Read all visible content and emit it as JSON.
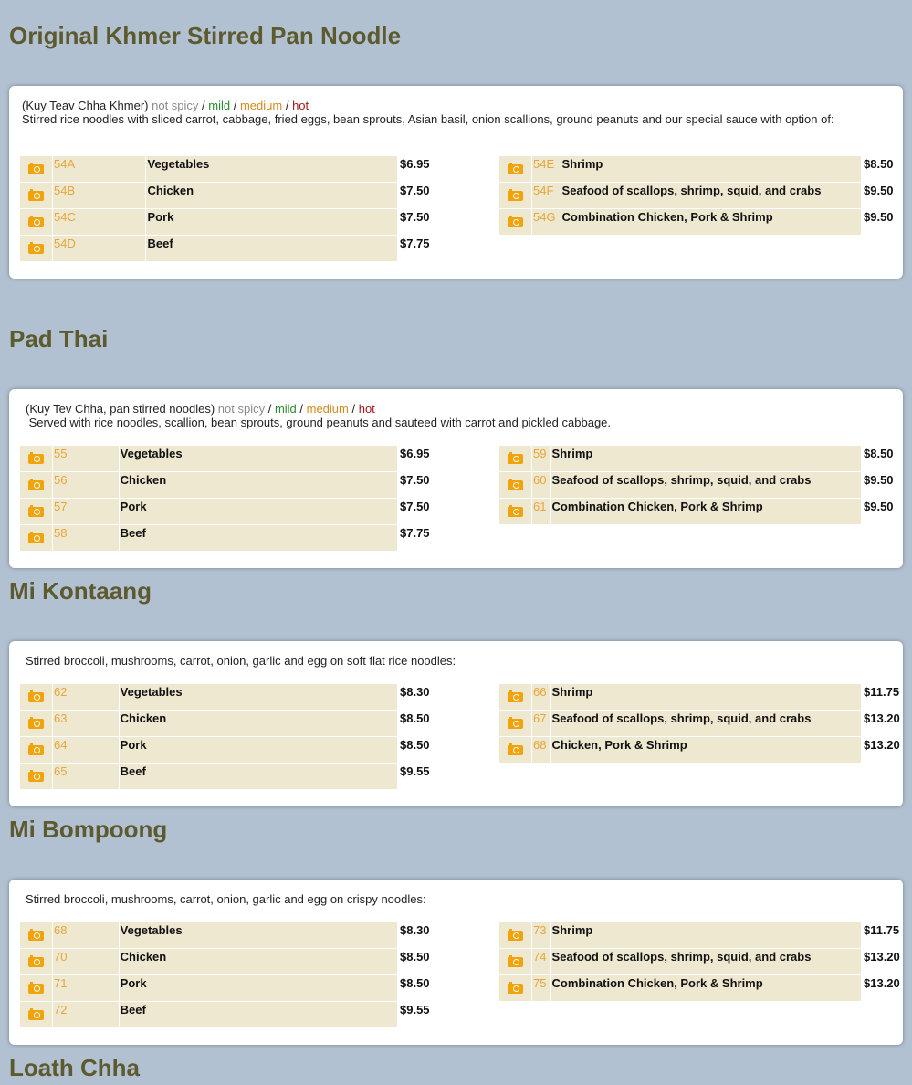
{
  "colors": {
    "background": "#b1c1d2",
    "title": "#5e5a2f",
    "row": "#eee8d0",
    "code": "#e8a63a",
    "not_spicy": "#8a8a8a",
    "mild": "#2b8a2b",
    "medium": "#d4891c",
    "hot": "#a21a1a",
    "camera_icon": "#f0a30a"
  },
  "sections": [
    {
      "title": "Original Khmer Stirred Pan Noodle",
      "subtitle": "(Kuy Teav Chha Khmer)",
      "spice": [
        "not spicy",
        "mild",
        "medium",
        "hot"
      ],
      "description": "Stirred rice noodles with sliced carrot, cabbage, fried eggs, bean sprouts, Asian basil, onion scallions, ground peanuts and our special sauce with option of:",
      "left": [
        {
          "code": "54A",
          "name": "Vegetables",
          "price": "$6.95"
        },
        {
          "code": "54B",
          "name": "Chicken",
          "price": "$7.50"
        },
        {
          "code": "54C",
          "name": "Pork",
          "price": "$7.50"
        },
        {
          "code": "54D",
          "name": "Beef",
          "price": "$7.75"
        }
      ],
      "right": [
        {
          "code": "54E",
          "name": "Shrimp",
          "price": "$8.50"
        },
        {
          "code": "54F",
          "name": "Seafood of scallops, shrimp, squid, and crabs",
          "price": "$9.50"
        },
        {
          "code": "54G",
          "name": "Combination  Chicken, Pork & Shrimp",
          "price": "$9.50"
        }
      ]
    },
    {
      "title": "Pad Thai",
      "subtitle": "(Kuy Tev Chha, pan stirred noodles)",
      "spice": [
        "not spicy",
        "mild",
        "medium",
        "hot"
      ],
      "description": " Served with rice noodles, scallion, bean sprouts, ground peanuts and sauteed with carrot and pickled cabbage.",
      "left": [
        {
          "code": "55",
          "name": "Vegetables",
          "price": "$6.95"
        },
        {
          "code": "56",
          "name": "Chicken",
          "price": "$7.50"
        },
        {
          "code": "57",
          "name": "Pork",
          "price": "$7.50"
        },
        {
          "code": "58",
          "name": "Beef",
          "price": "$7.75"
        }
      ],
      "right": [
        {
          "code": "59",
          "name": "Shrimp",
          "price": "$8.50"
        },
        {
          "code": "60",
          "name": "Seafood of scallops, shrimp, squid, and crabs",
          "price": "$9.50"
        },
        {
          "code": "61",
          "name": "Combination Chicken, Pork & Shrimp",
          "price": "$9.50"
        }
      ]
    },
    {
      "title": "Mi Kontaang",
      "description": "Stirred broccoli, mushrooms, carrot, onion, garlic and egg on soft flat rice noodles:",
      "left": [
        {
          "code": "62",
          "name": "Vegetables",
          "price": "$8.30"
        },
        {
          "code": "63",
          "name": "Chicken",
          "price": "$8.50"
        },
        {
          "code": "64",
          "name": "Pork",
          "price": "$8.50"
        },
        {
          "code": "65",
          "name": "Beef",
          "price": "$9.55"
        }
      ],
      "right": [
        {
          "code": "66",
          "name": "Shrimp",
          "price": "$11.75"
        },
        {
          "code": "67",
          "name": "Seafood of scallops, shrimp, squid, and crabs",
          "price": "$13.20"
        },
        {
          "code": "68",
          "name": "Chicken, Pork & Shrimp",
          "price": "$13.20"
        }
      ]
    },
    {
      "title": "Mi Bompoong",
      "description": "Stirred broccoli, mushrooms, carrot, onion, garlic and egg on crispy noodles:",
      "left": [
        {
          "code": "68",
          "name": "Vegetables",
          "price": "$8.30"
        },
        {
          "code": "70",
          "name": "Chicken",
          "price": "$8.50"
        },
        {
          "code": "71",
          "name": "Pork",
          "price": "$8.50"
        },
        {
          "code": "72",
          "name": "Beef",
          "price": "$9.55"
        }
      ],
      "right": [
        {
          "code": "73",
          "name": "Shrimp",
          "price": "$11.75"
        },
        {
          "code": "74",
          "name": "Seafood of scallops, shrimp, squid, and crabs",
          "price": "$13.20"
        },
        {
          "code": "75",
          "name": "Combination  Chicken, Pork & Shrimp",
          "price": "$13.20"
        }
      ]
    },
    {
      "title": "Loath Chha"
    }
  ]
}
